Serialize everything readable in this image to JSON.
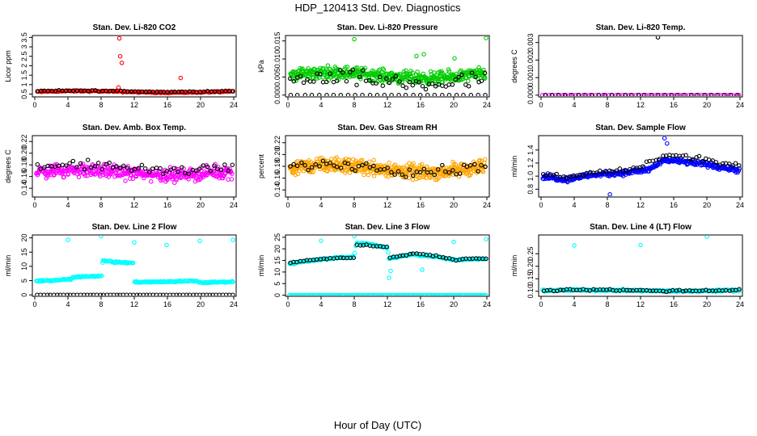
{
  "title": "HDP_120413  Std. Dev. Diagnostics",
  "xlabel": "Hour of Day (UTC)",
  "colors": {
    "ref": "#000000",
    "co2": "#ff0000",
    "pressure": "#00cc00",
    "temp": "#ff00ff",
    "rh": "#ffa500",
    "flow": "#0000ff",
    "line": "#00ffff"
  },
  "chart_data": [
    {
      "type": "scatter",
      "title": "Stan. Dev. Li-820 CO2",
      "ylabel": "Licor ppm",
      "xlim": [
        0,
        24
      ],
      "ylim": [
        0.35,
        3.6
      ],
      "xticks": [
        0,
        4,
        8,
        12,
        16,
        20,
        24
      ],
      "yticks": [
        0.5,
        1.0,
        1.5,
        2.0,
        2.5,
        3.0,
        3.5
      ],
      "yticklabels": [
        "0.5",
        "1",
        "1.5",
        "2",
        "2.5",
        "3",
        "3.5"
      ],
      "series": [
        {
          "name": "main",
          "color": "co2",
          "gen": {
            "base": 0.62,
            "amp": 0.04,
            "noise": 0.05,
            "n": 150,
            "from": 0.3,
            "to": 23.9
          }
        },
        {
          "name": "ref",
          "color": "ref",
          "gen": {
            "base": 0.65,
            "amp": 0.03,
            "noise": 0.04,
            "n": 55,
            "from": 0.3,
            "to": 23.9
          }
        },
        {
          "name": "spikes",
          "color": "co2",
          "points": [
            [
              10.2,
              3.45
            ],
            [
              10.3,
              2.5
            ],
            [
              10.5,
              2.15
            ],
            [
              10.1,
              0.85
            ],
            [
              17.6,
              1.35
            ]
          ]
        }
      ]
    },
    {
      "type": "scatter",
      "title": "Stan. Dev. Li-820 Pressure",
      "ylabel": "kPa",
      "xlim": [
        0,
        24
      ],
      "ylim": [
        -0.0005,
        0.0165
      ],
      "xticks": [
        0,
        4,
        8,
        12,
        16,
        20,
        24
      ],
      "yticks": [
        0.0,
        0.005,
        0.01,
        0.015
      ],
      "yticklabels": [
        "0.000",
        "0.005",
        "0.010",
        "0.015"
      ],
      "series": [
        {
          "name": "main",
          "color": "pressure",
          "gen": {
            "base": 0.0055,
            "amp": 0.0008,
            "noise": 0.0025,
            "n": 420,
            "from": 0.3,
            "to": 23.8,
            "min": 0.0
          }
        },
        {
          "name": "ref",
          "color": "ref",
          "gen": {
            "base": 0.0038,
            "amp": 0.0008,
            "noise": 0.0035,
            "n": 60,
            "from": 0.3,
            "to": 23.8,
            "min": 0.0
          }
        },
        {
          "name": "zero",
          "color": "ref",
          "gen": {
            "base": 0.0,
            "amp": 0.0,
            "noise": 0.0,
            "n": 28,
            "from": 0.3,
            "to": 23.8
          }
        },
        {
          "name": "outliers",
          "color": "pressure",
          "points": [
            [
              8.0,
              0.0155
            ],
            [
              23.9,
              0.0158
            ],
            [
              16.4,
              0.0113
            ],
            [
              15.5,
              0.0108
            ],
            [
              20.1,
              0.0102
            ]
          ]
        }
      ]
    },
    {
      "type": "scatter",
      "title": "Stan. Dev. Li-820 Temp.",
      "ylabel": "degrees C",
      "xlim": [
        0,
        24
      ],
      "ylim": [
        -0.0001,
        0.0034
      ],
      "xticks": [
        0,
        4,
        8,
        12,
        16,
        20,
        24
      ],
      "yticks": [
        0.0,
        0.001,
        0.002,
        0.003
      ],
      "yticklabels": [
        "0.000",
        "0.001",
        "0.002",
        "0.003"
      ],
      "series": [
        {
          "name": "main",
          "color": "temp",
          "gen": {
            "base": 0.0,
            "amp": 0.0,
            "noise": 0.0,
            "n": 60,
            "from": 0.2,
            "to": 23.9
          }
        },
        {
          "name": "ref",
          "color": "ref",
          "gen": {
            "base": 0.0,
            "amp": 0.0,
            "noise": 0.0,
            "n": 30,
            "from": 0.5,
            "to": 23.7
          }
        },
        {
          "name": "spike",
          "color": "ref",
          "points": [
            [
              14.1,
              0.0033
            ]
          ]
        }
      ]
    },
    {
      "type": "scatter",
      "title": "Stan. Dev. Amb. Box Temp.",
      "ylabel": "degrees C",
      "xlim": [
        0,
        24
      ],
      "ylim": [
        0.125,
        0.23
      ],
      "xticks": [
        0,
        4,
        8,
        12,
        16,
        20,
        24
      ],
      "yticks": [
        0.14,
        0.16,
        0.18,
        0.2,
        0.22
      ],
      "yticklabels": [
        "0.14",
        "0.16",
        "0.18",
        "0.20",
        "0.22"
      ],
      "series": [
        {
          "name": "main",
          "color": "temp",
          "gen": {
            "base": 0.167,
            "amp": 0.004,
            "noise": 0.016,
            "n": 380,
            "from": 0.2,
            "to": 23.8
          }
        },
        {
          "name": "ref",
          "color": "ref",
          "gen": {
            "base": 0.175,
            "amp": 0.005,
            "noise": 0.012,
            "n": 55,
            "from": 0.3,
            "to": 23.8
          }
        }
      ]
    },
    {
      "type": "scatter",
      "title": "Stan. Dev. Gas Stream RH",
      "ylabel": "percent",
      "xlim": [
        0,
        24
      ],
      "ylim": [
        0.128,
        0.232
      ],
      "xticks": [
        0,
        4,
        8,
        12,
        16,
        20,
        24
      ],
      "yticks": [
        0.14,
        0.16,
        0.18,
        0.2,
        0.22
      ],
      "yticklabels": [
        "0.14",
        "0.16",
        "0.18",
        "0.20",
        "0.22"
      ],
      "series": [
        {
          "name": "main",
          "color": "rh",
          "gen": {
            "base": 0.176,
            "amp": 0.006,
            "noise": 0.018,
            "n": 460,
            "from": 0.2,
            "to": 23.8
          }
        },
        {
          "name": "ref",
          "color": "ref",
          "gen": {
            "base": 0.178,
            "amp": 0.006,
            "noise": 0.014,
            "n": 55,
            "from": 0.3,
            "to": 23.8
          }
        }
      ]
    },
    {
      "type": "scatter",
      "title": "Stan. Dev. Sample Flow",
      "ylabel": "ml/min",
      "xlim": [
        0,
        24
      ],
      "ylim": [
        0.68,
        1.62
      ],
      "xticks": [
        0,
        4,
        8,
        12,
        16,
        20,
        24
      ],
      "yticks": [
        0.8,
        1.0,
        1.2,
        1.4
      ],
      "yticklabels": [
        "0.8",
        "1.0",
        "1.2",
        "1.4"
      ],
      "series": [
        {
          "name": "main",
          "color": "flow",
          "gen": {
            "curve": [
              [
                0,
                1.0
              ],
              [
                3,
                0.95
              ],
              [
                6,
                1.02
              ],
              [
                10,
                1.05
              ],
              [
                13,
                1.1
              ],
              [
                15,
                1.25
              ],
              [
                17,
                1.22
              ],
              [
                20,
                1.18
              ],
              [
                24,
                1.08
              ]
            ],
            "noise": 0.06,
            "n": 330,
            "from": 0.2,
            "to": 23.9
          }
        },
        {
          "name": "ref",
          "color": "ref",
          "gen": {
            "curve": [
              [
                0,
                1.02
              ],
              [
                3,
                0.98
              ],
              [
                6,
                1.05
              ],
              [
                10,
                1.08
              ],
              [
                13,
                1.2
              ],
              [
                15,
                1.32
              ],
              [
                17,
                1.3
              ],
              [
                20,
                1.25
              ],
              [
                24,
                1.15
              ]
            ],
            "noise": 0.05,
            "n": 60,
            "from": 0.3,
            "to": 23.9
          }
        },
        {
          "name": "outliers",
          "color": "flow",
          "points": [
            [
              8.3,
              0.72
            ],
            [
              14.9,
              1.58
            ],
            [
              15.2,
              1.5
            ]
          ]
        }
      ]
    },
    {
      "type": "scatter",
      "title": "Stan. Dev. Line 2 Flow",
      "ylabel": "ml/min",
      "xlim": [
        0,
        24
      ],
      "ylim": [
        -0.5,
        21
      ],
      "xticks": [
        0,
        4,
        8,
        12,
        16,
        20,
        24
      ],
      "yticks": [
        0,
        5,
        10,
        15,
        20
      ],
      "yticklabels": [
        "0",
        "5",
        "10",
        "15",
        "20"
      ],
      "series": [
        {
          "name": "main",
          "color": "line",
          "gen": {
            "curve": [
              [
                0.2,
                4.8
              ],
              [
                4.4,
                5.5
              ],
              [
                4.6,
                6.3
              ],
              [
                8.1,
                6.6
              ],
              [
                8.2,
                12.2
              ],
              [
                9.5,
                11.5
              ],
              [
                11.9,
                11.2
              ],
              [
                12.0,
                4.5
              ],
              [
                16.0,
                4.6
              ],
              [
                19.6,
                4.9
              ],
              [
                19.8,
                4.3
              ],
              [
                23.9,
                4.6
              ]
            ],
            "noise": 0.35,
            "n": 230,
            "from": 0.2,
            "to": 23.9
          }
        },
        {
          "name": "ref",
          "color": "ref",
          "gen": {
            "base": 0.0,
            "amp": 0.0,
            "noise": 0.0,
            "n": 60,
            "from": 0.3,
            "to": 23.9
          }
        },
        {
          "name": "spikes",
          "color": "line",
          "points": [
            [
              4.0,
              19.3
            ],
            [
              8.0,
              20.6
            ],
            [
              12.0,
              18.4
            ],
            [
              15.9,
              17.5
            ],
            [
              19.9,
              18.9
            ],
            [
              23.9,
              19.3
            ]
          ]
        }
      ]
    },
    {
      "type": "scatter",
      "title": "Stan. Dev. Line 3 Flow",
      "ylabel": "ml/min",
      "xlim": [
        0,
        24
      ],
      "ylim": [
        -0.5,
        26
      ],
      "xticks": [
        0,
        4,
        8,
        12,
        16,
        20,
        24
      ],
      "yticks": [
        0,
        5,
        10,
        15,
        20,
        25
      ],
      "yticklabels": [
        "0",
        "5",
        "10",
        "15",
        "20",
        "25"
      ],
      "series": [
        {
          "name": "main",
          "color": "line",
          "gen": {
            "curve": [
              [
                0.2,
                13.5
              ],
              [
                3,
                15.0
              ],
              [
                6,
                16.2
              ],
              [
                8.0,
                16.5
              ],
              [
                8.2,
                22.5
              ],
              [
                10,
                22.0
              ],
              [
                12.0,
                20.5
              ],
              [
                12.2,
                15.8
              ],
              [
                15,
                17.5
              ],
              [
                18,
                16.5
              ],
              [
                20,
                15.2
              ],
              [
                23.9,
                15.7
              ]
            ],
            "noise": 0.5,
            "n": 200,
            "from": 0.2,
            "to": 23.9
          }
        },
        {
          "name": "ref",
          "color": "ref",
          "gen": {
            "curve": [
              [
                0.2,
                14.0
              ],
              [
                3,
                15.3
              ],
              [
                6,
                16.2
              ],
              [
                8.0,
                16.2
              ],
              [
                8.2,
                21.8
              ],
              [
                10,
                21.5
              ],
              [
                12.0,
                20.8
              ],
              [
                12.2,
                16.0
              ],
              [
                15,
                18.0
              ],
              [
                18,
                17.0
              ],
              [
                20,
                15.3
              ],
              [
                23.9,
                16.0
              ]
            ],
            "noise": 0.4,
            "n": 60,
            "from": 0.3,
            "to": 23.9
          }
        },
        {
          "name": "zero",
          "color": "line",
          "gen": {
            "base": 0.0,
            "amp": 0.0,
            "noise": 0.0,
            "n": 150,
            "from": 0.2,
            "to": 23.9
          }
        },
        {
          "name": "outliers",
          "color": "line",
          "points": [
            [
              4.0,
              23.5
            ],
            [
              8.0,
              25.5
            ],
            [
              12.2,
              7.5
            ],
            [
              12.4,
              10.5
            ],
            [
              16.2,
              11.0
            ],
            [
              20.0,
              23.0
            ],
            [
              23.9,
              24.2
            ]
          ]
        }
      ]
    },
    {
      "type": "scatter",
      "title": "Stan. Dev. Line 4 (LT) Flow",
      "ylabel": "ml/min",
      "xlim": [
        0,
        24
      ],
      "ylim": [
        0.08,
        0.325
      ],
      "xticks": [
        0,
        4,
        8,
        12,
        16,
        20,
        24
      ],
      "yticks": [
        0.1,
        0.15,
        0.2,
        0.25
      ],
      "yticklabels": [
        "0.10",
        "0.15",
        "0.20",
        "0.25"
      ],
      "series": [
        {
          "name": "main",
          "color": "line",
          "gen": {
            "base": 0.103,
            "amp": 0.002,
            "noise": 0.006,
            "n": 230,
            "from": 0.2,
            "to": 23.9
          }
        },
        {
          "name": "ref",
          "color": "ref",
          "gen": {
            "base": 0.104,
            "amp": 0.002,
            "noise": 0.005,
            "n": 60,
            "from": 0.3,
            "to": 23.9
          }
        },
        {
          "name": "spikes",
          "color": "line",
          "points": [
            [
              4.0,
              0.283
            ],
            [
              12.0,
              0.285
            ],
            [
              20.0,
              0.318
            ]
          ]
        }
      ]
    }
  ]
}
